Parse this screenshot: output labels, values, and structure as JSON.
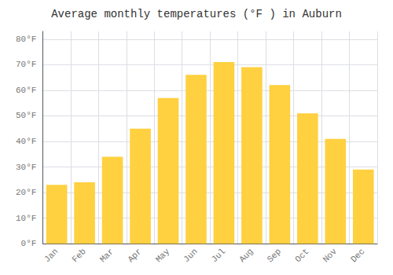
{
  "chart_data": {
    "type": "bar",
    "title": "Average monthly temperatures (°F ) in Auburn",
    "categories": [
      "Jan",
      "Feb",
      "Mar",
      "Apr",
      "May",
      "Jun",
      "Jul",
      "Aug",
      "Sep",
      "Oct",
      "Nov",
      "Dec"
    ],
    "values": [
      23,
      24,
      34,
      45,
      57,
      66,
      71,
      69,
      62,
      51,
      41,
      29
    ],
    "color": "#FFD040",
    "ylim": [
      0,
      83
    ],
    "yticks": [
      {
        "value": 0,
        "label": "0°F"
      },
      {
        "value": 10,
        "label": "10°F"
      },
      {
        "value": 20,
        "label": "20°F"
      },
      {
        "value": 30,
        "label": "30°F"
      },
      {
        "value": 40,
        "label": "40°F"
      },
      {
        "value": 50,
        "label": "50°F"
      },
      {
        "value": 60,
        "label": "60°F"
      },
      {
        "value": 70,
        "label": "70°F"
      },
      {
        "value": 80,
        "label": "80°F"
      }
    ],
    "grid": true
  }
}
